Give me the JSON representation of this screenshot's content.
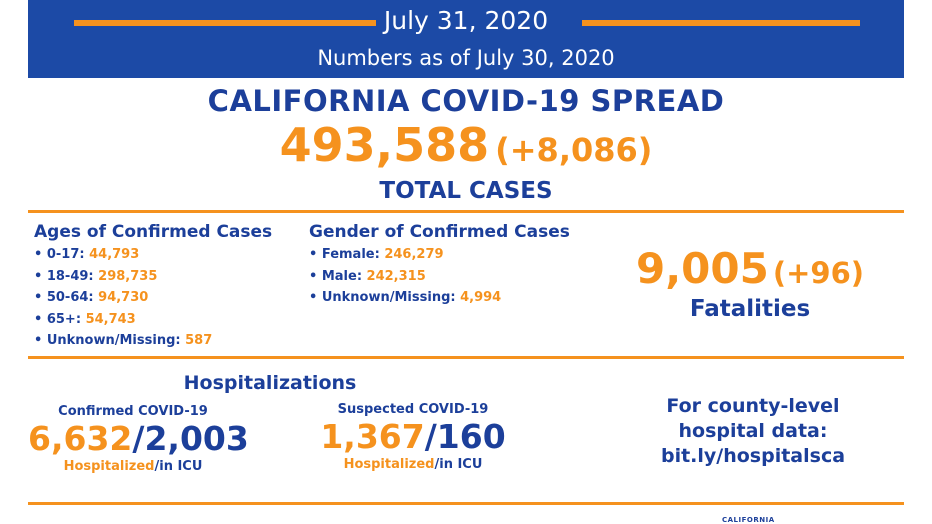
{
  "header": {
    "date": "July 31, 2020",
    "subtitle": "Numbers as of July 30, 2020"
  },
  "spread": {
    "title": "CALIFORNIA COVID-19 SPREAD",
    "total": "493,588",
    "delta": "(+8,086)",
    "label": "TOTAL CASES"
  },
  "ages": {
    "title": "Ages of Confirmed Cases",
    "items": [
      {
        "label": "• 0-17:",
        "value": "44,793"
      },
      {
        "label": "• 18-49:",
        "value": "298,735"
      },
      {
        "label": "• 50-64:",
        "value": "94,730"
      },
      {
        "label": "• 65+:",
        "value": "54,743"
      },
      {
        "label": "• Unknown/Missing:",
        "value": "587"
      }
    ]
  },
  "gender": {
    "title": "Gender of Confirmed Cases",
    "items": [
      {
        "label": "• Female:",
        "value": "246,279"
      },
      {
        "label": "• Male:",
        "value": "242,315"
      },
      {
        "label": "• Unknown/Missing:",
        "value": "4,994"
      }
    ]
  },
  "fatalities": {
    "value": "9,005",
    "delta": "(+96)",
    "label": "Fatalities"
  },
  "hospitalizations": {
    "title": "Hospitalizations",
    "confirmed": {
      "caption": "Confirmed COVID-19",
      "hospitalized": "6,632",
      "sep": "/",
      "icu": "2,003",
      "foot_h": "Hospitalized",
      "foot_i": "/in ICU"
    },
    "suspected": {
      "caption": "Suspected COVID-19",
      "hospitalized": "1,367",
      "sep": "/",
      "icu": "160",
      "foot_h": "Hospitalized",
      "foot_i": "/in ICU"
    }
  },
  "county": {
    "line1": "For county-level",
    "line2": "hospital data:",
    "link": "bit.ly/hospitalsca"
  },
  "logo": "CALIFORNIA",
  "colors": {
    "primary_blue": "#1c4aa6",
    "text_blue": "#1c3f9a",
    "accent_orange": "#f5921e"
  }
}
